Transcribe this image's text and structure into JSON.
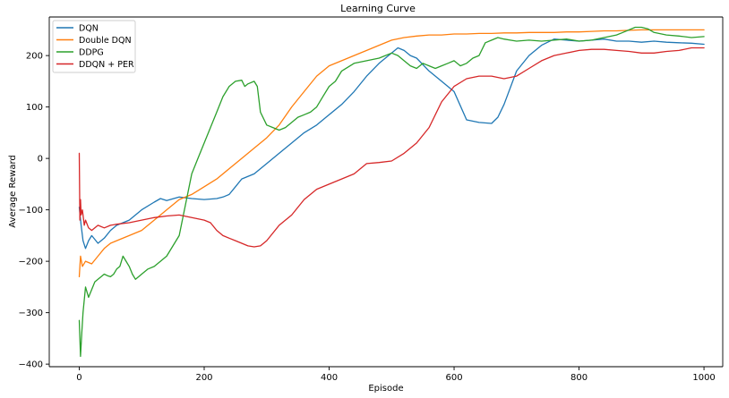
{
  "chart_data": {
    "type": "line",
    "title": "Learning Curve",
    "xlabel": "Episode",
    "ylabel": "Average Reward",
    "xlim": [
      -48,
      1030
    ],
    "ylim": [
      -405,
      275
    ],
    "xticks": [
      0,
      200,
      400,
      600,
      800,
      1000
    ],
    "yticks": [
      -400,
      -300,
      -200,
      -100,
      0,
      100,
      200
    ],
    "ytick_labels": [
      "−400",
      "−300",
      "−200",
      "−100",
      "0",
      "100",
      "200"
    ],
    "grid": false,
    "legend_position": "top-left",
    "series": [
      {
        "name": "DQN",
        "color": "#1f77b4",
        "x": [
          0,
          3,
          6,
          10,
          15,
          20,
          30,
          40,
          50,
          60,
          80,
          100,
          120,
          130,
          140,
          160,
          180,
          200,
          220,
          230,
          240,
          250,
          260,
          280,
          300,
          320,
          340,
          360,
          380,
          400,
          420,
          440,
          460,
          480,
          500,
          510,
          520,
          530,
          540,
          560,
          580,
          600,
          620,
          640,
          660,
          670,
          680,
          700,
          720,
          740,
          760,
          780,
          800,
          820,
          840,
          860,
          880,
          900,
          920,
          940,
          960,
          980,
          1000
        ],
        "y": [
          -95,
          -130,
          -160,
          -175,
          -160,
          -150,
          -165,
          -155,
          -140,
          -130,
          -120,
          -100,
          -85,
          -78,
          -82,
          -75,
          -78,
          -80,
          -78,
          -75,
          -70,
          -55,
          -40,
          -30,
          -10,
          10,
          30,
          50,
          65,
          85,
          105,
          130,
          160,
          185,
          205,
          215,
          210,
          200,
          195,
          170,
          150,
          130,
          75,
          70,
          68,
          80,
          105,
          170,
          200,
          220,
          232,
          230,
          228,
          230,
          232,
          228,
          228,
          226,
          228,
          226,
          225,
          224,
          222
        ]
      },
      {
        "name": "Double DQN",
        "color": "#ff7f0e",
        "x": [
          0,
          2,
          5,
          10,
          20,
          30,
          40,
          50,
          60,
          80,
          100,
          120,
          140,
          160,
          180,
          200,
          220,
          240,
          260,
          280,
          300,
          320,
          340,
          360,
          380,
          400,
          420,
          440,
          460,
          480,
          500,
          520,
          540,
          560,
          580,
          600,
          620,
          640,
          660,
          680,
          700,
          720,
          740,
          760,
          780,
          800,
          820,
          840,
          860,
          880,
          900,
          920,
          940,
          960,
          980,
          1000
        ],
        "y": [
          -230,
          -190,
          -210,
          -200,
          -205,
          -190,
          -175,
          -165,
          -160,
          -150,
          -140,
          -120,
          -100,
          -80,
          -70,
          -55,
          -40,
          -20,
          0,
          20,
          40,
          65,
          100,
          130,
          160,
          180,
          190,
          200,
          210,
          220,
          230,
          235,
          238,
          240,
          240,
          242,
          242,
          243,
          243,
          244,
          244,
          245,
          245,
          245,
          246,
          246,
          247,
          248,
          248,
          249,
          250,
          250,
          250,
          250,
          250,
          250
        ]
      },
      {
        "name": "DDPG",
        "color": "#2ca02c",
        "x": [
          0,
          2,
          4,
          6,
          10,
          15,
          20,
          25,
          30,
          35,
          40,
          45,
          50,
          55,
          60,
          65,
          70,
          75,
          80,
          85,
          90,
          95,
          100,
          110,
          120,
          130,
          140,
          150,
          160,
          170,
          180,
          190,
          200,
          210,
          220,
          230,
          240,
          250,
          260,
          265,
          270,
          280,
          285,
          290,
          300,
          310,
          320,
          330,
          340,
          350,
          360,
          370,
          380,
          390,
          400,
          410,
          420,
          440,
          460,
          480,
          500,
          510,
          520,
          530,
          540,
          550,
          560,
          570,
          580,
          590,
          600,
          610,
          620,
          630,
          640,
          650,
          660,
          670,
          680,
          690,
          700,
          720,
          740,
          760,
          780,
          800,
          820,
          840,
          860,
          870,
          880,
          890,
          900,
          910,
          920,
          940,
          960,
          980,
          1000
        ],
        "y": [
          -315,
          -385,
          -340,
          -300,
          -250,
          -270,
          -255,
          -240,
          -235,
          -230,
          -225,
          -228,
          -230,
          -225,
          -215,
          -210,
          -190,
          -200,
          -210,
          -225,
          -235,
          -230,
          -225,
          -215,
          -210,
          -200,
          -190,
          -170,
          -150,
          -90,
          -30,
          0,
          30,
          60,
          90,
          120,
          140,
          150,
          152,
          140,
          145,
          150,
          140,
          90,
          65,
          60,
          55,
          60,
          70,
          80,
          85,
          90,
          100,
          120,
          140,
          150,
          170,
          185,
          190,
          195,
          205,
          200,
          190,
          180,
          175,
          185,
          180,
          175,
          180,
          185,
          190,
          180,
          185,
          195,
          200,
          225,
          230,
          235,
          232,
          230,
          228,
          230,
          228,
          230,
          232,
          228,
          230,
          235,
          240,
          245,
          250,
          255,
          255,
          252,
          245,
          240,
          238,
          235,
          237
        ]
      },
      {
        "name": "DDQN + PER",
        "color": "#d62728",
        "x": [
          0,
          1,
          2,
          3,
          5,
          8,
          10,
          15,
          20,
          30,
          40,
          50,
          60,
          80,
          100,
          120,
          140,
          160,
          180,
          200,
          210,
          220,
          230,
          240,
          250,
          260,
          270,
          280,
          290,
          300,
          320,
          340,
          360,
          380,
          400,
          420,
          440,
          460,
          480,
          500,
          520,
          540,
          560,
          580,
          600,
          620,
          640,
          660,
          680,
          700,
          720,
          740,
          760,
          780,
          800,
          820,
          840,
          860,
          880,
          900,
          920,
          940,
          960,
          980,
          1000
        ],
        "y": [
          10,
          -120,
          -80,
          -110,
          -100,
          -130,
          -120,
          -135,
          -140,
          -130,
          -135,
          -130,
          -128,
          -125,
          -120,
          -115,
          -112,
          -110,
          -115,
          -120,
          -125,
          -140,
          -150,
          -155,
          -160,
          -165,
          -170,
          -172,
          -170,
          -160,
          -130,
          -110,
          -80,
          -60,
          -50,
          -40,
          -30,
          -10,
          -8,
          -5,
          10,
          30,
          60,
          110,
          140,
          155,
          160,
          160,
          155,
          160,
          175,
          190,
          200,
          205,
          210,
          212,
          212,
          210,
          208,
          205,
          205,
          208,
          210,
          215,
          215
        ]
      }
    ]
  }
}
